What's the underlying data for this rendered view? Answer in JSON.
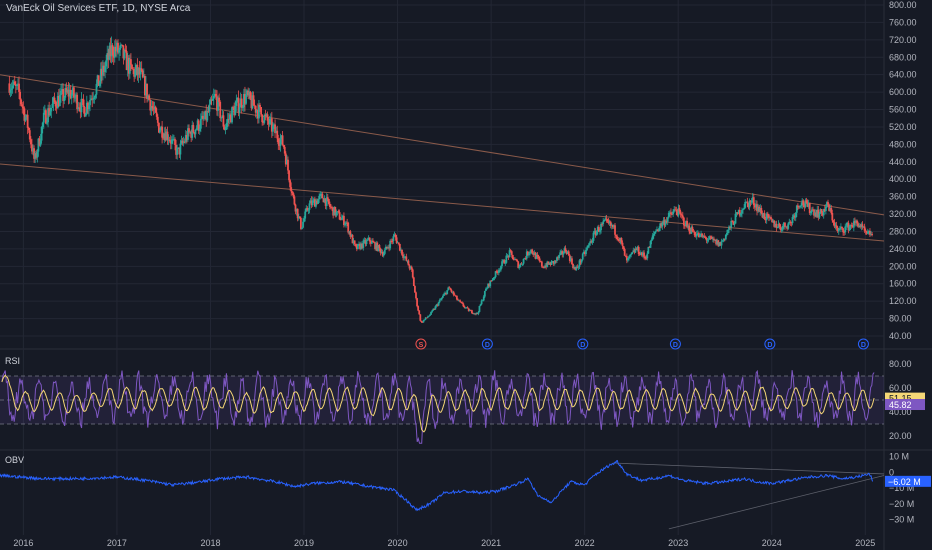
{
  "header": {
    "title": "VanEck Oil Services ETF, 1D, NYSE Arca"
  },
  "colors": {
    "background": "#161a25",
    "grid": "#232734",
    "up": "#26a69a",
    "down": "#ef5350",
    "trendline": "#8a5a4a",
    "rsi_line": "#7e57c2",
    "rsi_ma": "#f5d776",
    "obv_line": "#2962ff",
    "axis_text": "#b2b5be"
  },
  "chart_data": [
    {
      "type": "candlestick",
      "title": "VanEck Oil Services ETF, 1D, NYSE Arca",
      "x_ticks": [
        "2016",
        "2017",
        "2018",
        "2019",
        "2020",
        "2021",
        "2022",
        "2023",
        "2024",
        "2025"
      ],
      "y_ticks": [
        "800.00",
        "760.00",
        "720.00",
        "680.00",
        "640.00",
        "600.00",
        "560.00",
        "520.00",
        "480.00",
        "440.00",
        "400.00",
        "360.00",
        "320.00",
        "280.00",
        "240.00",
        "200.00",
        "160.00",
        "120.00",
        "80.00",
        "40.00"
      ],
      "ylim": [
        40,
        800
      ],
      "close_path": [
        [
          2015.85,
          620
        ],
        [
          2015.95,
          600
        ],
        [
          2016.05,
          520
        ],
        [
          2016.12,
          440
        ],
        [
          2016.22,
          540
        ],
        [
          2016.35,
          580
        ],
        [
          2016.5,
          600
        ],
        [
          2016.65,
          560
        ],
        [
          2016.8,
          620
        ],
        [
          2016.95,
          700
        ],
        [
          2017.05,
          690
        ],
        [
          2017.15,
          650
        ],
        [
          2017.25,
          640
        ],
        [
          2017.35,
          580
        ],
        [
          2017.45,
          520
        ],
        [
          2017.55,
          500
        ],
        [
          2017.65,
          460
        ],
        [
          2017.75,
          500
        ],
        [
          2017.85,
          520
        ],
        [
          2017.95,
          540
        ],
        [
          2018.05,
          590
        ],
        [
          2018.15,
          520
        ],
        [
          2018.25,
          560
        ],
        [
          2018.38,
          590
        ],
        [
          2018.5,
          560
        ],
        [
          2018.62,
          530
        ],
        [
          2018.78,
          480
        ],
        [
          2018.88,
          360
        ],
        [
          2018.97,
          290
        ],
        [
          2019.05,
          340
        ],
        [
          2019.2,
          360
        ],
        [
          2019.3,
          330
        ],
        [
          2019.45,
          300
        ],
        [
          2019.55,
          240
        ],
        [
          2019.7,
          260
        ],
        [
          2019.85,
          230
        ],
        [
          2019.97,
          270
        ],
        [
          2020.05,
          230
        ],
        [
          2020.15,
          190
        ],
        [
          2020.2,
          120
        ],
        [
          2020.25,
          70
        ],
        [
          2020.35,
          90
        ],
        [
          2020.45,
          120
        ],
        [
          2020.55,
          150
        ],
        [
          2020.65,
          120
        ],
        [
          2020.75,
          100
        ],
        [
          2020.85,
          90
        ],
        [
          2020.95,
          150
        ],
        [
          2021.1,
          200
        ],
        [
          2021.2,
          230
        ],
        [
          2021.3,
          200
        ],
        [
          2021.42,
          240
        ],
        [
          2021.55,
          200
        ],
        [
          2021.68,
          210
        ],
        [
          2021.8,
          240
        ],
        [
          2021.9,
          190
        ],
        [
          2022.0,
          230
        ],
        [
          2022.12,
          280
        ],
        [
          2022.22,
          300
        ],
        [
          2022.3,
          290
        ],
        [
          2022.38,
          260
        ],
        [
          2022.45,
          210
        ],
        [
          2022.55,
          240
        ],
        [
          2022.65,
          220
        ],
        [
          2022.75,
          280
        ],
        [
          2022.88,
          310
        ],
        [
          2022.98,
          330
        ],
        [
          2023.1,
          290
        ],
        [
          2023.22,
          270
        ],
        [
          2023.35,
          260
        ],
        [
          2023.45,
          250
        ],
        [
          2023.58,
          300
        ],
        [
          2023.7,
          340
        ],
        [
          2023.8,
          350
        ],
        [
          2023.9,
          320
        ],
        [
          2024.0,
          300
        ],
        [
          2024.1,
          290
        ],
        [
          2024.2,
          300
        ],
        [
          2024.3,
          350
        ],
        [
          2024.42,
          330
        ],
        [
          2024.52,
          320
        ],
        [
          2024.6,
          340
        ],
        [
          2024.7,
          280
        ],
        [
          2024.8,
          290
        ],
        [
          2024.92,
          300
        ],
        [
          2025.02,
          270
        ],
        [
          2025.08,
          280
        ]
      ],
      "markers": [
        {
          "label": "S",
          "x": 2020.25,
          "color": "#ef5350"
        },
        {
          "label": "D",
          "x": 2020.96,
          "color": "#2962ff"
        },
        {
          "label": "D",
          "x": 2021.98,
          "color": "#2962ff"
        },
        {
          "label": "D",
          "x": 2022.97,
          "color": "#2962ff"
        },
        {
          "label": "D",
          "x": 2023.98,
          "color": "#2962ff"
        },
        {
          "label": "D",
          "x": 2024.98,
          "color": "#2962ff"
        }
      ],
      "trendlines": [
        {
          "from": [
            2015.75,
            640
          ],
          "to": [
            2025.2,
            318
          ]
        },
        {
          "from": [
            2015.75,
            435
          ],
          "to": [
            2025.2,
            258
          ]
        }
      ]
    },
    {
      "type": "line",
      "name": "RSI",
      "y_ticks": [
        "80.00",
        "40.00",
        "20.00"
      ],
      "ylim": [
        10,
        90
      ],
      "levels": [
        70,
        50,
        30
      ],
      "current_values": [
        "51.15",
        "45.82"
      ],
      "right_labels": [
        "60.00"
      ]
    },
    {
      "type": "line",
      "name": "OBV",
      "y_ticks": [
        "10 M",
        "0",
        "−10 M",
        "−20 M",
        "−30 M"
      ],
      "ylim": [
        -38,
        13
      ],
      "current_value": "−6.02 M",
      "path": [
        [
          2015.75,
          -2
        ],
        [
          2016.2,
          -4
        ],
        [
          2016.6,
          -4
        ],
        [
          2017.0,
          -3
        ],
        [
          2017.3,
          -5
        ],
        [
          2017.6,
          -8
        ],
        [
          2017.9,
          -6
        ],
        [
          2018.1,
          -4
        ],
        [
          2018.4,
          -3
        ],
        [
          2018.7,
          -6
        ],
        [
          2018.9,
          -9
        ],
        [
          2019.1,
          -7
        ],
        [
          2019.4,
          -6
        ],
        [
          2019.7,
          -9
        ],
        [
          2019.95,
          -11
        ],
        [
          2020.1,
          -18
        ],
        [
          2020.2,
          -24
        ],
        [
          2020.35,
          -20
        ],
        [
          2020.5,
          -13
        ],
        [
          2020.7,
          -12
        ],
        [
          2020.9,
          -13
        ],
        [
          2021.05,
          -12
        ],
        [
          2021.25,
          -8
        ],
        [
          2021.4,
          -4
        ],
        [
          2021.5,
          -15
        ],
        [
          2021.65,
          -19
        ],
        [
          2021.75,
          -12
        ],
        [
          2021.85,
          -6
        ],
        [
          2022.0,
          -8
        ],
        [
          2022.1,
          -2
        ],
        [
          2022.25,
          4
        ],
        [
          2022.35,
          7
        ],
        [
          2022.45,
          -1
        ],
        [
          2022.6,
          -5
        ],
        [
          2022.75,
          -4
        ],
        [
          2022.9,
          -2
        ],
        [
          2023.05,
          -5
        ],
        [
          2023.3,
          -7
        ],
        [
          2023.5,
          -6
        ],
        [
          2023.7,
          -4
        ],
        [
          2023.85,
          -6
        ],
        [
          2024.0,
          -7
        ],
        [
          2024.2,
          -5
        ],
        [
          2024.4,
          -3
        ],
        [
          2024.6,
          -2
        ],
        [
          2024.75,
          -4
        ],
        [
          2024.9,
          -3
        ],
        [
          2025.05,
          -1
        ],
        [
          2025.08,
          -6
        ]
      ],
      "trendlines": [
        {
          "from": [
            2022.3,
            6
          ],
          "to": [
            2025.2,
            -1
          ]
        },
        {
          "from": [
            2022.9,
            -36
          ],
          "to": [
            2025.2,
            -2
          ]
        }
      ]
    }
  ]
}
